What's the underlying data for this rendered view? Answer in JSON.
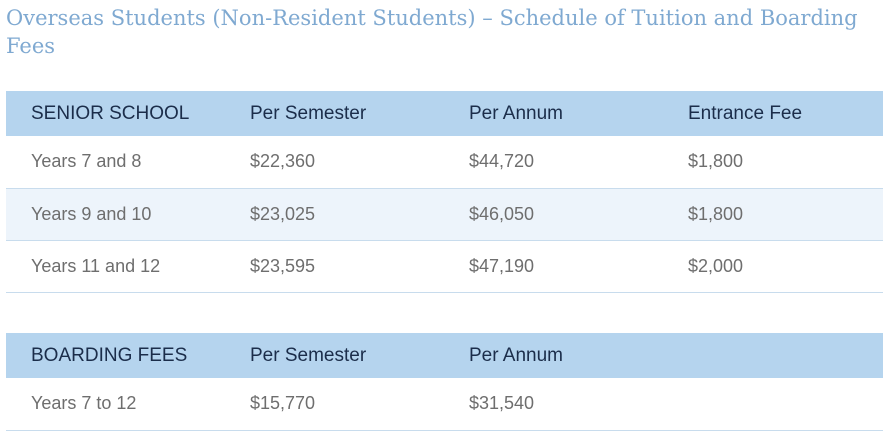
{
  "page": {
    "title": "Overseas Students (Non-Resident Students) – Schedule of Tuition and Boarding Fees"
  },
  "senior": {
    "headers": [
      "SENIOR SCHOOL",
      "Per Semester",
      "Per Annum",
      "Entrance Fee"
    ],
    "rows": [
      [
        "Years 7 and 8",
        "$22,360",
        "$44,720",
        "$1,800"
      ],
      [
        "Years 9 and 10",
        "$23,025",
        "$46,050",
        "$1,800"
      ],
      [
        "Years 11 and 12",
        "$23,595",
        "$47,190",
        "$2,000"
      ]
    ]
  },
  "boarding": {
    "headers": [
      "BOARDING FEES",
      "Per Semester",
      "Per Annum",
      ""
    ],
    "rows": [
      [
        "Years 7 to 12",
        "$15,770",
        "$31,540",
        ""
      ]
    ]
  },
  "colors": {
    "title": "#7fa9d1",
    "header_bg": "#b5d4ee",
    "header_text": "#1b2d4a",
    "alt_row_bg": "#edf4fb",
    "cell_text": "#6e6e6e",
    "row_border": "#c8dced"
  }
}
